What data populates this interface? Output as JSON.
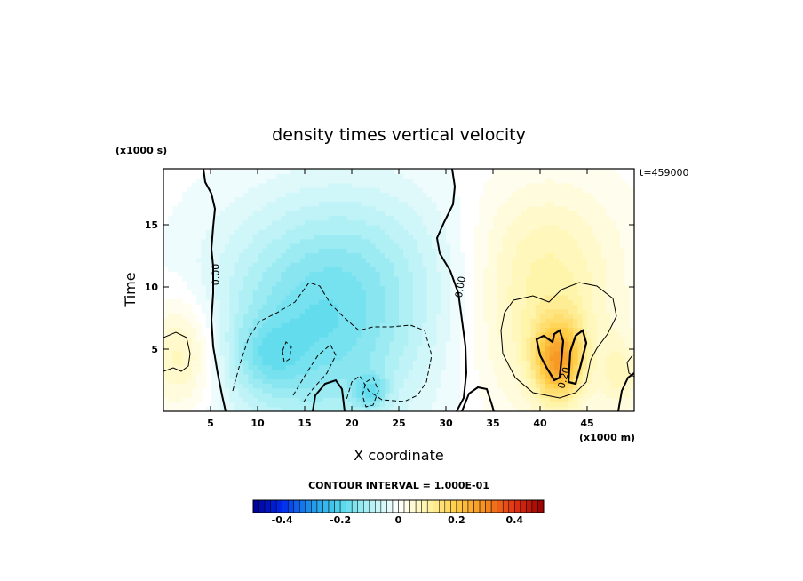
{
  "chart_data": {
    "type": "heatmap",
    "title": "density times vertical velocity",
    "xlabel": "X coordinate",
    "ylabel": "Time",
    "x_units": "(x1000 m)",
    "y_units": "(x1000 s)",
    "time_stamp": "t=459000",
    "xlim": [
      0,
      50
    ],
    "ylim": [
      0,
      19.5
    ],
    "x_ticks": [
      5,
      10,
      15,
      20,
      25,
      30,
      35,
      40,
      45
    ],
    "y_ticks": [
      5,
      10,
      15
    ],
    "contour_interval_label": "CONTOUR INTERVAL = 1.000E-01",
    "contour_labels": [
      {
        "text": "0.00",
        "x": 5.5,
        "y": 11.0,
        "rotate": -90
      },
      {
        "text": "0.00",
        "x": 31.5,
        "y": 10.0,
        "rotate": -80
      },
      {
        "text": "0.20",
        "x": 42.5,
        "y": 2.7,
        "rotate": -75
      }
    ],
    "colorbar": {
      "min": -0.5,
      "max": 0.5,
      "step": 0.02,
      "tick_values": [
        -0.4,
        -0.2,
        0,
        0.2,
        0.4
      ],
      "tick_labels": [
        "-0.4",
        "-0.2",
        "0",
        "0.2",
        "0.4"
      ]
    },
    "field_features": [
      {
        "kind": "positive",
        "x": 2.0,
        "y": 4.6,
        "sx": 2.6,
        "sy": 3.2,
        "amp": 0.1
      },
      {
        "kind": "negative",
        "x": 16.5,
        "y": 5.5,
        "sx": 8.0,
        "sy": 6.0,
        "amp": -0.14
      },
      {
        "kind": "negative",
        "x": 20.0,
        "y": 12.5,
        "sx": 9.0,
        "sy": 5.0,
        "amp": -0.07
      },
      {
        "kind": "negative",
        "x": 11.0,
        "y": 4.5,
        "sx": 2.5,
        "sy": 2.0,
        "amp": -0.06
      },
      {
        "kind": "negative",
        "x": 22.0,
        "y": 1.6,
        "sx": 1.2,
        "sy": 1.0,
        "amp": -0.09
      },
      {
        "kind": "positive",
        "x": 40.5,
        "y": 7.5,
        "sx": 5.5,
        "sy": 5.5,
        "amp": 0.09
      },
      {
        "kind": "positive",
        "x": 41.5,
        "y": 4.0,
        "sx": 1.6,
        "sy": 2.2,
        "amp": 0.19
      },
      {
        "kind": "positive",
        "x": 43.5,
        "y": 4.5,
        "sx": 1.2,
        "sy": 2.5,
        "amp": 0.06
      },
      {
        "kind": "positive",
        "x": 40.0,
        "y": 14.0,
        "sx": 6.0,
        "sy": 4.0,
        "amp": 0.04
      },
      {
        "kind": "positive",
        "x": 48.5,
        "y": 3.0,
        "sx": 1.5,
        "sy": 2.0,
        "amp": 0.06
      }
    ]
  }
}
